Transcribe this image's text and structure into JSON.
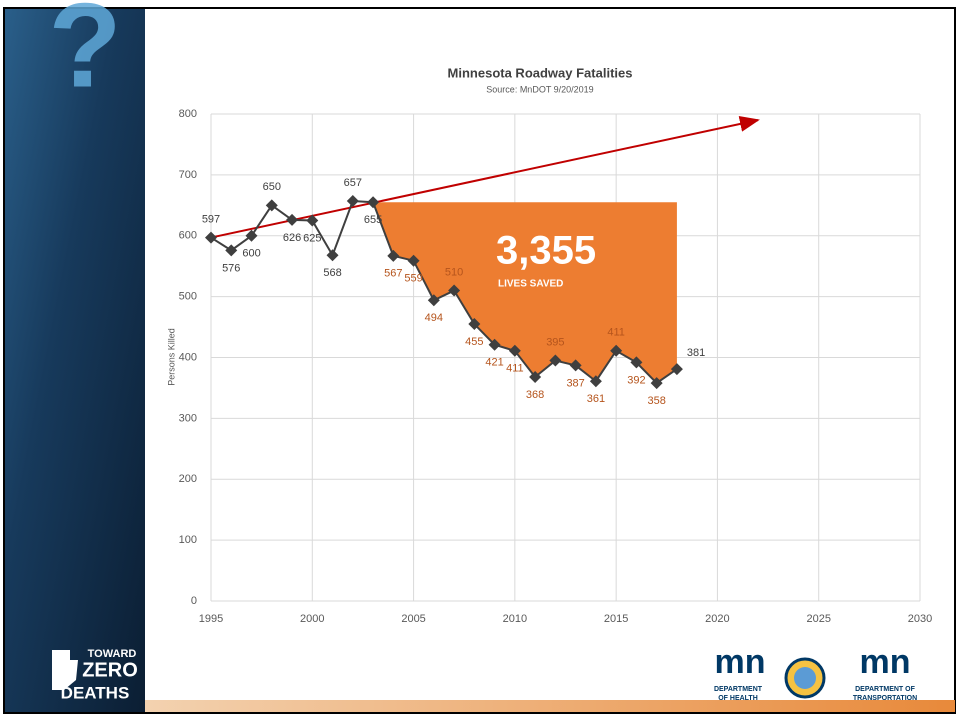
{
  "chart_data": {
    "type": "line",
    "title": "Minnesota Roadway Fatalities",
    "subtitle": "Source: MnDOT 9/20/2019",
    "y_label": "Persons Killed",
    "x": [
      1995,
      1996,
      1997,
      1998,
      1999,
      2000,
      2001,
      2002,
      2003,
      2004,
      2005,
      2006,
      2007,
      2008,
      2009,
      2010,
      2011,
      2012,
      2013,
      2014,
      2015,
      2016,
      2017,
      2018
    ],
    "series": [
      {
        "name": "Fatalities",
        "color": "#3f3f3f",
        "values": [
          597,
          576,
          600,
          650,
          626,
          625,
          568,
          657,
          655,
          567,
          559,
          494,
          510,
          455,
          421,
          411,
          368,
          395,
          387,
          361,
          411,
          392,
          358,
          381
        ]
      }
    ],
    "xlim": [
      1995,
      2030
    ],
    "xticks": [
      1995,
      2000,
      2005,
      2010,
      2015,
      2020,
      2025,
      2030
    ],
    "ylim": [
      0,
      800
    ],
    "yticks": [
      0,
      100,
      200,
      300,
      400,
      500,
      600,
      700,
      800
    ],
    "grid": true,
    "trend_arrow": {
      "x": [
        1995,
        2022
      ],
      "y": [
        597,
        790
      ],
      "color": "#c00000"
    },
    "saved_area": {
      "from": 2003,
      "to": 2018,
      "color": "#ed7d31"
    },
    "annotation": "3,355",
    "annotation_sub": "LIVES SAVED"
  },
  "sidebar": {
    "mark": "?",
    "logo_top": "TOWARD",
    "logo_mid": "ZERO",
    "logo_bottom": "DEATHS"
  },
  "footer": {
    "mn": "mn",
    "health": [
      "DEPARTMENT",
      "OF HEALTH"
    ],
    "transport": [
      "DEPARTMENT OF",
      "TRANSPORTATION"
    ]
  }
}
